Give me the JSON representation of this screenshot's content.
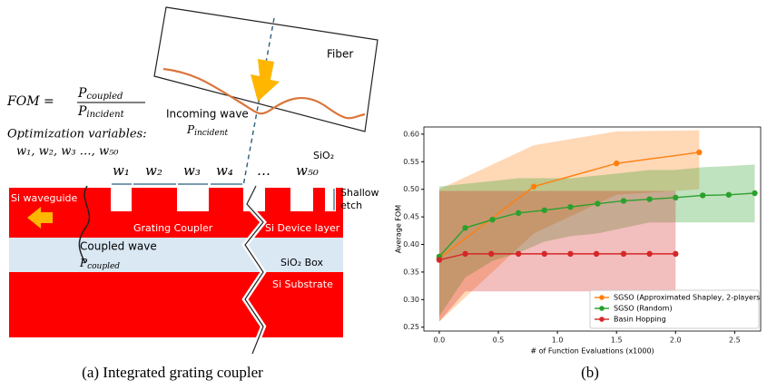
{
  "diagram": {
    "fom": {
      "lhs": "FOM =",
      "num": "P",
      "num_sub": "coupled",
      "den": "P",
      "den_sub": "incident"
    },
    "opt_label": "Optimization variables:",
    "opt_vars": "w₁, w₂, w₃ …, w₅₀",
    "fiber": "Fiber",
    "incoming": "Incoming wave",
    "p_incident": {
      "p": "P",
      "sub": "incident"
    },
    "widths": [
      "w₁",
      "w₂",
      "w₃",
      "w₄",
      "…",
      "w₅₀"
    ],
    "sio2_top": "SiO₂",
    "shallow": [
      "Shallow",
      "etch"
    ],
    "si_waveguide": "Si waveguide",
    "grating": "Grating Coupler",
    "device_layer": "Si Device layer",
    "coupled": "Coupled wave",
    "p_coupled": {
      "p": "P",
      "sub": "coupled"
    },
    "box": "SiO₂ Box",
    "substrate": "Si Substrate",
    "caption": "(a) Integrated grating coupler"
  },
  "caption_b": "(b)",
  "chart_data": {
    "type": "line",
    "y_label": "Average FOM",
    "x_label": "# of Function Evaluations (x1000)",
    "xlim": [
      -0.13,
      2.72
    ],
    "ylim": [
      0.243,
      0.613
    ],
    "xticks": [
      {
        "value": 0,
        "label": "0.0"
      },
      {
        "value": 0.5,
        "label": "0.5"
      },
      {
        "value": 1,
        "label": "1.0"
      },
      {
        "value": 1.5,
        "label": "1.5"
      },
      {
        "value": 2,
        "label": "2.0"
      },
      {
        "value": 2.5,
        "label": "2.5"
      }
    ],
    "yticks": [
      {
        "value": 0.25,
        "label": "0.25"
      },
      {
        "value": 0.3,
        "label": "0.30"
      },
      {
        "value": 0.35,
        "label": "0.35"
      },
      {
        "value": 0.4,
        "label": "0.40"
      },
      {
        "value": 0.45,
        "label": "0.45"
      },
      {
        "value": 0.5,
        "label": "0.50"
      },
      {
        "value": 0.55,
        "label": "0.55"
      },
      {
        "value": 0.6,
        "label": "0.60"
      }
    ],
    "legend": "lower right",
    "series": [
      {
        "name": "SGSO (Approximated Shapley, 2-players",
        "color": "#ff7f0e",
        "x": [
          0,
          0.8,
          1.5,
          2.2
        ],
        "values": [
          0.375,
          0.505,
          0.547,
          0.567
        ],
        "upper": [
          0.5,
          0.58,
          0.605,
          0.607
        ],
        "lower": [
          0.26,
          0.42,
          0.49,
          0.5
        ]
      },
      {
        "name": "SGSO (Random)",
        "color": "#2ca02c",
        "x": [
          0,
          0.22,
          0.45,
          0.67,
          0.89,
          1.11,
          1.34,
          1.56,
          1.78,
          2.0,
          2.23,
          2.45,
          2.67
        ],
        "values": [
          0.378,
          0.43,
          0.445,
          0.457,
          0.462,
          0.468,
          0.474,
          0.479,
          0.482,
          0.485,
          0.489,
          0.49,
          0.493
        ],
        "upper": [
          0.505,
          0.51,
          0.515,
          0.52,
          0.52,
          0.52,
          0.525,
          0.53,
          0.535,
          0.535,
          0.54,
          0.542,
          0.545
        ],
        "lower": [
          0.27,
          0.34,
          0.37,
          0.385,
          0.405,
          0.415,
          0.42,
          0.43,
          0.44,
          0.44,
          0.44,
          0.44,
          0.44
        ]
      },
      {
        "name": "Basin Hopping",
        "color": "#d62728",
        "x": [
          0,
          0.22,
          0.44,
          0.67,
          0.89,
          1.11,
          1.33,
          1.56,
          1.78,
          2.0
        ],
        "values": [
          0.372,
          0.383,
          0.383,
          0.383,
          0.383,
          0.383,
          0.383,
          0.383,
          0.383,
          0.383
        ],
        "upper": [
          0.497,
          0.497,
          0.497,
          0.497,
          0.497,
          0.497,
          0.497,
          0.497,
          0.497,
          0.497
        ],
        "lower": [
          0.26,
          0.315,
          0.315,
          0.315,
          0.315,
          0.315,
          0.315,
          0.315,
          0.315,
          0.315
        ]
      }
    ]
  }
}
